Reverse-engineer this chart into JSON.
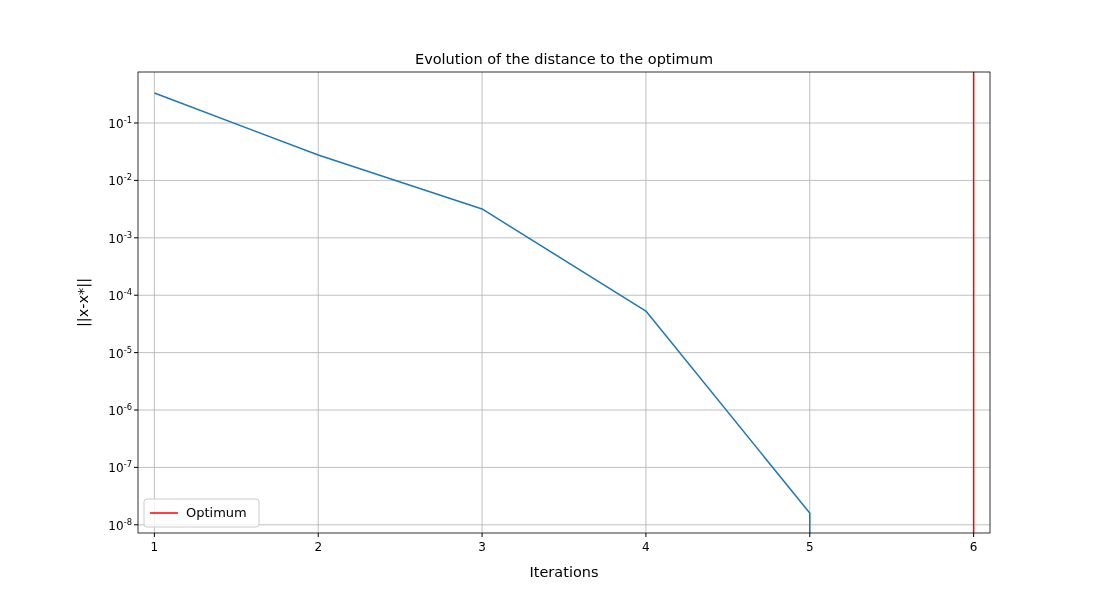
{
  "chart_data": {
    "type": "line",
    "title": "Evolution of the distance to the optimum",
    "xlabel": "Iterations",
    "ylabel": "||x-x*||",
    "x": [
      1,
      2,
      3,
      4,
      5,
      5
    ],
    "series": [
      {
        "color": "#1f77b4",
        "values": [
          0.333,
          0.0277,
          0.00318,
          5.3e-05,
          1.6e-08,
          7.2e-09
        ]
      },
      {
        "name": "Optimum",
        "color": "#ff0000",
        "x": [
          6,
          6
        ],
        "values": [
          7.2e-09,
          0.774
        ]
      }
    ],
    "xlim": [
      0.9,
      6.1
    ],
    "xticks": [
      1,
      2,
      3,
      4,
      5,
      6
    ],
    "ylim": [
      7.2e-09,
      0.774
    ],
    "yticks": [
      {
        "value": 1e-08,
        "label": "10$^{-8}$"
      },
      {
        "value": 1e-07,
        "label": "10$^{-7}$"
      },
      {
        "value": 1e-06,
        "label": "10$^{-6}$"
      },
      {
        "value": 1e-05,
        "label": "10$^{-5}$"
      },
      {
        "value": 0.0001,
        "label": "10$^{-4}$"
      },
      {
        "value": 0.001,
        "label": "10$^{-3}$"
      },
      {
        "value": 0.01,
        "label": "10$^{-2}$"
      },
      {
        "value": 0.1,
        "label": "10$^{-1}$"
      }
    ],
    "log": "y",
    "grid": true,
    "legend": "bottom left"
  }
}
